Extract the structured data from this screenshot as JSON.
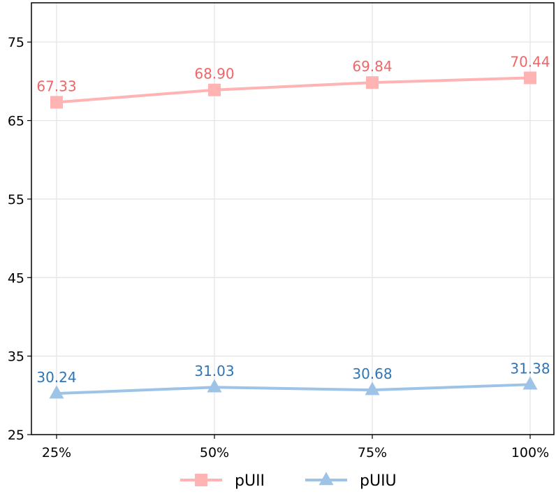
{
  "chart_data": {
    "type": "line",
    "categories": [
      "25%",
      "50%",
      "75%",
      "100%"
    ],
    "series": [
      {
        "name": "pUII",
        "values": [
          67.33,
          68.9,
          69.84,
          70.44
        ],
        "labels": [
          "67.33",
          "68.90",
          "69.84",
          "70.44"
        ],
        "line_color": "#ffb3b3",
        "label_color": "#f06666",
        "marker": "square"
      },
      {
        "name": "pUIU",
        "values": [
          30.24,
          31.03,
          30.68,
          31.38
        ],
        "labels": [
          "30.24",
          "31.03",
          "30.68",
          "31.38"
        ],
        "line_color": "#9dc3e6",
        "label_color": "#2f75b5",
        "marker": "triangle"
      }
    ],
    "yticks": [
      25,
      35,
      45,
      55,
      65,
      75
    ],
    "ylim": [
      25,
      80
    ],
    "grid": true,
    "legend_position": "bottom-center",
    "title": "",
    "xlabel": "",
    "ylabel": ""
  }
}
